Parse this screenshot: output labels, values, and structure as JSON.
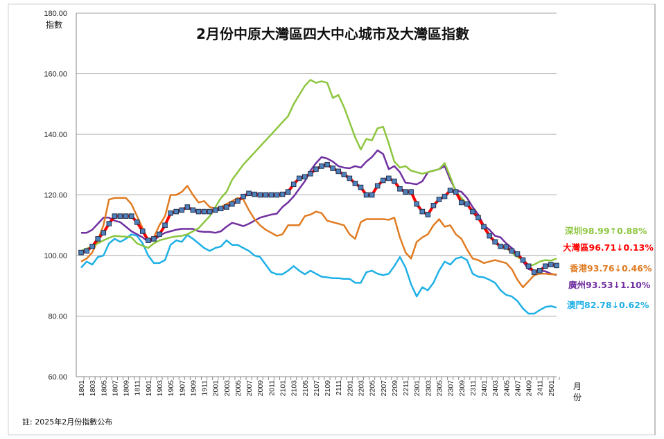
{
  "chart_data": {
    "type": "line",
    "title": "2月份中原大灣區四大中心城市及大灣區指數",
    "ylabel": "指數",
    "xlabel": "月份",
    "ylim": [
      60,
      180
    ],
    "yticks": [
      "60.00",
      "80.00",
      "100.00",
      "120.00",
      "140.00",
      "160.00",
      "180.00"
    ],
    "grid": true,
    "legend": "right",
    "note": "註: 2025年2月份指數公布",
    "x": [
      "1801",
      "1802",
      "1803",
      "1804",
      "1805",
      "1806",
      "1807",
      "1808",
      "1809",
      "1810",
      "1811",
      "1812",
      "1901",
      "1902",
      "1903",
      "1904",
      "1905",
      "1906",
      "1907",
      "1908",
      "1909",
      "1910",
      "1911",
      "1912",
      "2001",
      "2002",
      "2003",
      "2004",
      "2005",
      "2006",
      "2007",
      "2008",
      "2009",
      "2010",
      "2011",
      "2012",
      "2101",
      "2102",
      "2103",
      "2104",
      "2105",
      "2106",
      "2107",
      "2108",
      "2109",
      "2110",
      "2111",
      "2112",
      "2201",
      "2202",
      "2203",
      "2204",
      "2205",
      "2206",
      "2207",
      "2208",
      "2209",
      "2210",
      "2211",
      "2212",
      "2301",
      "2302",
      "2303",
      "2304",
      "2305",
      "2306",
      "2307",
      "2308",
      "2309",
      "2310",
      "2311",
      "2312",
      "2401",
      "2402",
      "2403",
      "2404",
      "2405",
      "2406",
      "2407",
      "2408",
      "2409",
      "2410",
      "2411",
      "2412",
      "2501",
      "2502"
    ],
    "series": [
      {
        "name": "深圳",
        "label": "深圳98.99",
        "arrow": "↑",
        "change": "0.88%",
        "color": "#8DC63F",
        "values": [
          101.5,
          102.3,
          103,
          104,
          105,
          105.8,
          106.5,
          106.3,
          106.2,
          106,
          104,
          103.2,
          102.5,
          104,
          105,
          105.5,
          106,
          106.3,
          106.5,
          107,
          108,
          109,
          111,
          113,
          116,
          119,
          121,
          125,
          127.5,
          130,
          132,
          134,
          136,
          138,
          140,
          142,
          144,
          146,
          150,
          153,
          156,
          158,
          157,
          157.5,
          157,
          152,
          153,
          149,
          144,
          139,
          135,
          138.5,
          138,
          142,
          142.5,
          137,
          131,
          129,
          129.5,
          128,
          127.5,
          127,
          127.5,
          128,
          128.5,
          130.5,
          126,
          121,
          119,
          117,
          114.5,
          112.5,
          110,
          107,
          104,
          103,
          102.5,
          101,
          99.5,
          98.5,
          96.5,
          97,
          98,
          98.5,
          98.3,
          98.99
        ]
      },
      {
        "name": "大灣區",
        "label": "大灣區96.71",
        "arrow": "↓",
        "change": "0.13%",
        "color": "#FF0000",
        "values": [
          101,
          101.5,
          103,
          105.5,
          107.5,
          110.5,
          113,
          113,
          113,
          113,
          111,
          108,
          105,
          105.5,
          107,
          110,
          114,
          114.5,
          115,
          116,
          115,
          114.5,
          114.5,
          114.5,
          115,
          115.5,
          116,
          117,
          118,
          119.5,
          120.5,
          120.2,
          120,
          120,
          120,
          120,
          120.2,
          121,
          123.5,
          125.5,
          126,
          127,
          128.5,
          129.5,
          130,
          128.8,
          127.8,
          126.7,
          125.5,
          123.8,
          122.5,
          120,
          120,
          123,
          124.8,
          125.5,
          124.5,
          122,
          121,
          121,
          117,
          114.5,
          113.5,
          116.5,
          118.5,
          119.5,
          121.5,
          121,
          117.5,
          117,
          114.5,
          112.5,
          109.5,
          106.5,
          104.5,
          103,
          102.8,
          101.5,
          100.5,
          98.5,
          96.5,
          94.5,
          95,
          96.5,
          97,
          96.71
        ]
      },
      {
        "name": "香港",
        "label": "香港93.76",
        "arrow": "↓",
        "change": "0.46%",
        "color": "#E07B22",
        "values": [
          98,
          99,
          101,
          105,
          110,
          118.5,
          119,
          119,
          119,
          117,
          113,
          109,
          105,
          106,
          110,
          113,
          120,
          120,
          121,
          123,
          120,
          117.5,
          118,
          116,
          115.5,
          116,
          117,
          118,
          119,
          118.5,
          115,
          112,
          110,
          108.5,
          107.5,
          106.5,
          107,
          110,
          110,
          110,
          113,
          113.5,
          114.5,
          114,
          111.5,
          111,
          110.5,
          110,
          107,
          105.5,
          111,
          112,
          112,
          112,
          112,
          111.8,
          112.5,
          106,
          101,
          99,
          104.5,
          106,
          107,
          110,
          112,
          109.5,
          110,
          107,
          105.5,
          102,
          99,
          98.5,
          97.5,
          98,
          98.5,
          98,
          97.5,
          95.5,
          92,
          89.5,
          91.5,
          93.5,
          94,
          94,
          93.8,
          93.76
        ]
      },
      {
        "name": "廣州",
        "label": "廣州93.53",
        "arrow": "↓",
        "change": "1.10%",
        "color": "#7030A0",
        "values": [
          107.5,
          107.5,
          108.5,
          110.5,
          112.5,
          112.5,
          111.5,
          111,
          109.5,
          108,
          107,
          106,
          104.5,
          105,
          106.5,
          107.5,
          108,
          108.5,
          108.8,
          108.8,
          108.8,
          108,
          107.8,
          107.8,
          107.5,
          108,
          109.5,
          110.8,
          110.3,
          109.7,
          110.5,
          111.5,
          112.5,
          113,
          113.5,
          113.8,
          116,
          117.5,
          119.5,
          122,
          124.5,
          128,
          130.5,
          132.5,
          132,
          131,
          129.5,
          129,
          128.8,
          129.5,
          129,
          131,
          132.5,
          134.7,
          133.5,
          128.5,
          129.5,
          127.5,
          124,
          123.8,
          123.5,
          124.5,
          127.5,
          128,
          128.5,
          129.5,
          125,
          121.5,
          121,
          119,
          116,
          113.5,
          110,
          108.5,
          106.5,
          106,
          104,
          102.5,
          100.5,
          98,
          95.5,
          95,
          95,
          94.8,
          94,
          93.53
        ]
      },
      {
        "name": "澳門",
        "label": "澳門82.78",
        "arrow": "↓",
        "change": "0.62%",
        "color": "#1FB0E6",
        "values": [
          96,
          98,
          97,
          99.5,
          100,
          104,
          105.5,
          104.5,
          105.5,
          107,
          106.5,
          104,
          100,
          97.5,
          97.5,
          98.5,
          103.5,
          105,
          104.5,
          106.8,
          105.5,
          104,
          102.5,
          101.5,
          102.5,
          103,
          105,
          103.5,
          103.5,
          102.5,
          101.5,
          100,
          99.5,
          97,
          94.5,
          93.8,
          93.8,
          95,
          96.5,
          95,
          93.8,
          95,
          94,
          93,
          92.8,
          92.5,
          92.5,
          92.3,
          92.3,
          91,
          91,
          94.5,
          95,
          94,
          93.5,
          94,
          96.5,
          99.5,
          96,
          90.5,
          86.5,
          89.5,
          88.5,
          91,
          95,
          98,
          97,
          99,
          99.5,
          98.5,
          94,
          93,
          92.8,
          92,
          91,
          88.5,
          87,
          86.5,
          85,
          82.5,
          80.8,
          80.8,
          82,
          83,
          83.3,
          82.78
        ]
      }
    ]
  }
}
